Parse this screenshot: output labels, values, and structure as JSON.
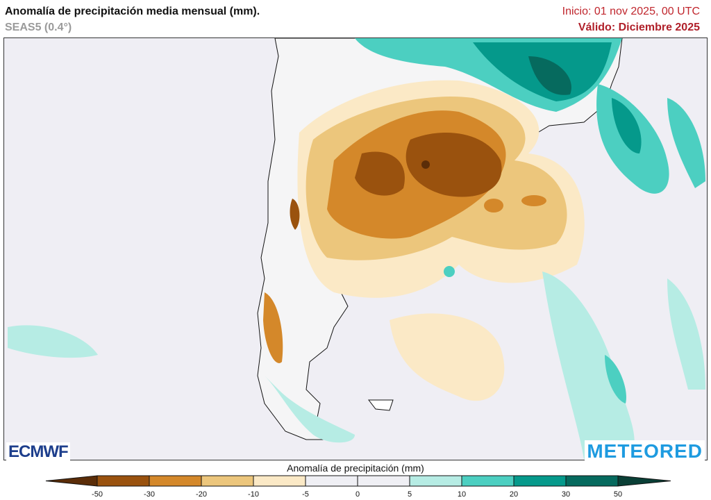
{
  "header": {
    "title": "Anomalía de precipitación media mensual (mm).",
    "model": "SEAS5 (0.4°)",
    "init": "Inicio: 01 nov 2025, 00 UTC",
    "valid": "Válido: Diciembre 2025"
  },
  "logos": {
    "left": "ECMWF",
    "right": "METEORED"
  },
  "colorbar": {
    "title": "Anomalía de precipitación (mm)",
    "ticks": [
      "-50",
      "-30",
      "-20",
      "-10",
      "-5",
      "0",
      "5",
      "10",
      "20",
      "30",
      "50"
    ],
    "colors": [
      "#5b2d08",
      "#9a520e",
      "#d4882a",
      "#ecc67c",
      "#fbe9c6",
      "#efeff4",
      "#efeff4",
      "#b6ece4",
      "#4ccfc1",
      "#05998b",
      "#066a5e",
      "#0a3f36"
    ]
  }
}
